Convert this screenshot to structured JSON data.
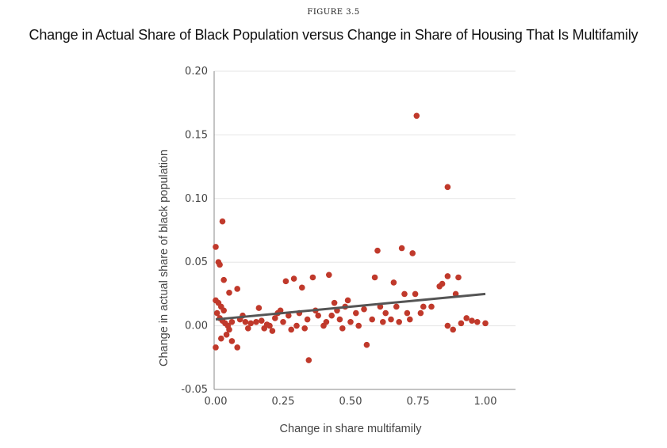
{
  "figure_label": "FIGURE 3.5",
  "chart_data": {
    "type": "scatter",
    "title": "Change in Actual Share of Black Population versus Change in Share of Housing That Is Multifamily",
    "xlabel": "Change in share multifamily",
    "ylabel": "Change in actual share of black population",
    "xlim": [
      0.0,
      1.0
    ],
    "ylim": [
      -0.05,
      0.2
    ],
    "x_ticks": [
      "0.00",
      "0.25",
      "0.50",
      "0.75",
      "1.00"
    ],
    "y_ticks": [
      "0.20",
      "0.15",
      "0.10",
      "0.05",
      "0.00",
      "-0.05"
    ],
    "grid": "horizontal",
    "colors": {
      "points": "#c0392b",
      "fit_line": "#555555",
      "grid": "#e6e6e6",
      "axis": "#888888"
    },
    "fit_line": {
      "x": [
        0.0,
        1.0
      ],
      "y": [
        0.005,
        0.025
      ]
    },
    "points": [
      {
        "x": 0.0,
        "y": 0.062
      },
      {
        "x": 0.01,
        "y": 0.05
      },
      {
        "x": 0.015,
        "y": 0.048
      },
      {
        "x": 0.025,
        "y": 0.082
      },
      {
        "x": 0.03,
        "y": 0.036
      },
      {
        "x": 0.05,
        "y": 0.026
      },
      {
        "x": 0.08,
        "y": 0.029
      },
      {
        "x": 0.0,
        "y": 0.02
      },
      {
        "x": 0.01,
        "y": 0.018
      },
      {
        "x": 0.02,
        "y": 0.015
      },
      {
        "x": 0.03,
        "y": 0.012
      },
      {
        "x": 0.005,
        "y": 0.01
      },
      {
        "x": 0.015,
        "y": 0.006
      },
      {
        "x": 0.025,
        "y": 0.004
      },
      {
        "x": 0.035,
        "y": 0.002
      },
      {
        "x": 0.045,
        "y": 0.0
      },
      {
        "x": 0.05,
        "y": -0.003
      },
      {
        "x": 0.06,
        "y": 0.003
      },
      {
        "x": 0.0,
        "y": -0.017
      },
      {
        "x": 0.02,
        "y": -0.01
      },
      {
        "x": 0.04,
        "y": -0.007
      },
      {
        "x": 0.06,
        "y": -0.012
      },
      {
        "x": 0.08,
        "y": -0.017
      },
      {
        "x": 0.09,
        "y": 0.005
      },
      {
        "x": 0.1,
        "y": 0.008
      },
      {
        "x": 0.11,
        "y": 0.003
      },
      {
        "x": 0.12,
        "y": -0.002
      },
      {
        "x": 0.13,
        "y": 0.002
      },
      {
        "x": 0.15,
        "y": 0.003
      },
      {
        "x": 0.16,
        "y": 0.014
      },
      {
        "x": 0.17,
        "y": 0.004
      },
      {
        "x": 0.18,
        "y": -0.002
      },
      {
        "x": 0.19,
        "y": 0.001
      },
      {
        "x": 0.2,
        "y": 0.0
      },
      {
        "x": 0.21,
        "y": -0.004
      },
      {
        "x": 0.22,
        "y": 0.006
      },
      {
        "x": 0.23,
        "y": 0.01
      },
      {
        "x": 0.24,
        "y": 0.012
      },
      {
        "x": 0.25,
        "y": 0.003
      },
      {
        "x": 0.26,
        "y": 0.035
      },
      {
        "x": 0.27,
        "y": 0.008
      },
      {
        "x": 0.28,
        "y": -0.003
      },
      {
        "x": 0.29,
        "y": 0.037
      },
      {
        "x": 0.3,
        "y": 0.0
      },
      {
        "x": 0.31,
        "y": 0.01
      },
      {
        "x": 0.32,
        "y": 0.03
      },
      {
        "x": 0.33,
        "y": -0.002
      },
      {
        "x": 0.34,
        "y": 0.005
      },
      {
        "x": 0.345,
        "y": -0.027
      },
      {
        "x": 0.36,
        "y": 0.038
      },
      {
        "x": 0.37,
        "y": 0.012
      },
      {
        "x": 0.38,
        "y": 0.008
      },
      {
        "x": 0.4,
        "y": 0.0
      },
      {
        "x": 0.41,
        "y": 0.003
      },
      {
        "x": 0.42,
        "y": 0.04
      },
      {
        "x": 0.43,
        "y": 0.008
      },
      {
        "x": 0.44,
        "y": 0.018
      },
      {
        "x": 0.45,
        "y": 0.012
      },
      {
        "x": 0.46,
        "y": 0.005
      },
      {
        "x": 0.47,
        "y": -0.002
      },
      {
        "x": 0.48,
        "y": 0.015
      },
      {
        "x": 0.49,
        "y": 0.02
      },
      {
        "x": 0.5,
        "y": 0.003
      },
      {
        "x": 0.52,
        "y": 0.01
      },
      {
        "x": 0.53,
        "y": 0.0
      },
      {
        "x": 0.55,
        "y": 0.013
      },
      {
        "x": 0.56,
        "y": -0.015
      },
      {
        "x": 0.58,
        "y": 0.005
      },
      {
        "x": 0.59,
        "y": 0.038
      },
      {
        "x": 0.6,
        "y": 0.059
      },
      {
        "x": 0.61,
        "y": 0.015
      },
      {
        "x": 0.62,
        "y": 0.003
      },
      {
        "x": 0.63,
        "y": 0.01
      },
      {
        "x": 0.65,
        "y": 0.005
      },
      {
        "x": 0.66,
        "y": 0.034
      },
      {
        "x": 0.67,
        "y": 0.015
      },
      {
        "x": 0.68,
        "y": 0.003
      },
      {
        "x": 0.69,
        "y": 0.061
      },
      {
        "x": 0.7,
        "y": 0.025
      },
      {
        "x": 0.71,
        "y": 0.01
      },
      {
        "x": 0.72,
        "y": 0.005
      },
      {
        "x": 0.73,
        "y": 0.057
      },
      {
        "x": 0.74,
        "y": 0.025
      },
      {
        "x": 0.745,
        "y": 0.165
      },
      {
        "x": 0.76,
        "y": 0.01
      },
      {
        "x": 0.77,
        "y": 0.015
      },
      {
        "x": 0.8,
        "y": 0.015
      },
      {
        "x": 0.83,
        "y": 0.031
      },
      {
        "x": 0.84,
        "y": 0.033
      },
      {
        "x": 0.86,
        "y": 0.109
      },
      {
        "x": 0.86,
        "y": 0.039
      },
      {
        "x": 0.86,
        "y": 0.0
      },
      {
        "x": 0.88,
        "y": -0.003
      },
      {
        "x": 0.89,
        "y": 0.025
      },
      {
        "x": 0.9,
        "y": 0.038
      },
      {
        "x": 0.91,
        "y": 0.002
      },
      {
        "x": 0.93,
        "y": 0.006
      },
      {
        "x": 0.95,
        "y": 0.004
      },
      {
        "x": 0.97,
        "y": 0.003
      },
      {
        "x": 1.0,
        "y": 0.002
      }
    ]
  }
}
